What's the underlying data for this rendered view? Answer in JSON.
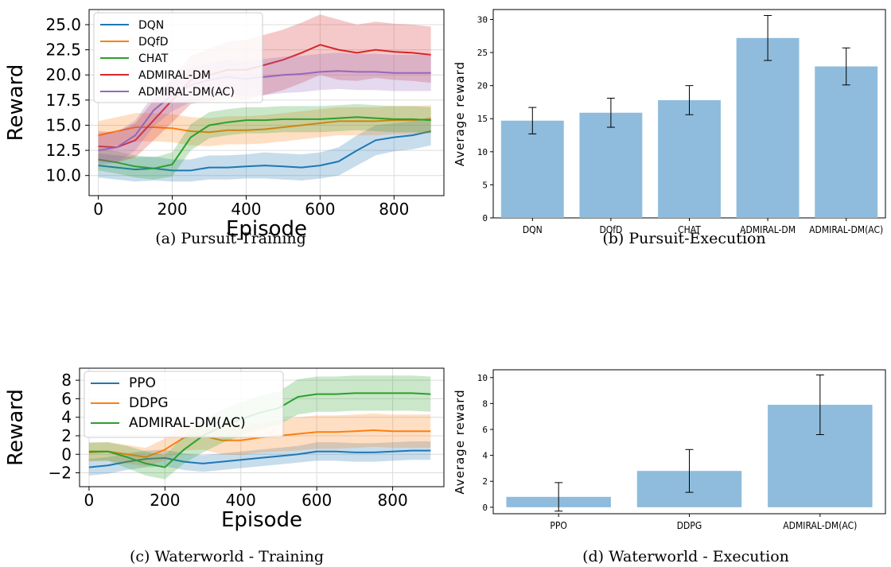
{
  "chart_data": [
    {
      "id": "a",
      "type": "line",
      "caption": "(a) Pursuit-Training",
      "xlabel": "Episode",
      "ylabel": "Reward",
      "xlim": [
        -25,
        935
      ],
      "ylim": [
        8.0,
        26.5
      ],
      "xticks": [
        0,
        200,
        400,
        600,
        800
      ],
      "yticks": [
        10.0,
        12.5,
        15.0,
        17.5,
        20.0,
        22.5,
        25.0
      ],
      "ytick_labels": [
        "10.0",
        "12.5",
        "15.0",
        "17.5",
        "20.0",
        "22.5",
        "25.0"
      ],
      "grid": true,
      "legend": "top-left",
      "series": [
        {
          "name": "DQN",
          "color": "#1f77b4",
          "x": [
            0,
            50,
            100,
            150,
            200,
            250,
            300,
            350,
            400,
            450,
            500,
            550,
            600,
            650,
            700,
            750,
            800,
            850,
            900
          ],
          "y": [
            11.0,
            10.8,
            10.6,
            10.7,
            10.5,
            10.5,
            10.8,
            10.8,
            10.9,
            11.0,
            10.9,
            10.8,
            11.0,
            11.4,
            12.5,
            13.5,
            13.8,
            14.0,
            14.4
          ],
          "band": [
            1.2,
            1.2,
            1.2,
            1.2,
            1.1,
            1.1,
            1.2,
            1.2,
            1.2,
            1.3,
            1.3,
            1.3,
            1.3,
            1.4,
            1.5,
            1.5,
            1.4,
            1.4,
            1.4
          ]
        },
        {
          "name": "DQfD",
          "color": "#ff7f0e",
          "x": [
            0,
            50,
            100,
            150,
            200,
            250,
            300,
            350,
            400,
            450,
            500,
            550,
            600,
            650,
            700,
            750,
            800,
            850,
            900
          ],
          "y": [
            14.0,
            14.4,
            14.8,
            14.8,
            14.7,
            14.4,
            14.3,
            14.5,
            14.5,
            14.6,
            14.8,
            15.0,
            15.2,
            15.4,
            15.4,
            15.4,
            15.5,
            15.5,
            15.6
          ],
          "band": [
            1.4,
            1.4,
            1.4,
            1.4,
            1.4,
            1.4,
            1.4,
            1.4,
            1.4,
            1.4,
            1.4,
            1.4,
            1.4,
            1.4,
            1.4,
            1.4,
            1.4,
            1.4,
            1.4
          ]
        },
        {
          "name": "CHAT",
          "color": "#2ca02c",
          "x": [
            0,
            50,
            100,
            150,
            200,
            250,
            300,
            350,
            400,
            450,
            500,
            550,
            600,
            650,
            700,
            750,
            800,
            850,
            900
          ],
          "y": [
            11.6,
            11.3,
            10.9,
            10.7,
            11.1,
            13.8,
            15.0,
            15.3,
            15.5,
            15.5,
            15.6,
            15.6,
            15.6,
            15.7,
            15.8,
            15.7,
            15.6,
            15.6,
            15.5
          ],
          "band": [
            1.1,
            1.1,
            1.1,
            1.1,
            1.2,
            1.3,
            1.3,
            1.3,
            1.3,
            1.3,
            1.3,
            1.3,
            1.3,
            1.3,
            1.3,
            1.3,
            1.3,
            1.3,
            1.3
          ]
        },
        {
          "name": "ADMIRAL-DM",
          "color": "#d62728",
          "x": [
            0,
            50,
            100,
            150,
            200,
            250,
            300,
            350,
            400,
            450,
            500,
            550,
            600,
            650,
            700,
            750,
            800,
            850,
            900
          ],
          "y": [
            12.9,
            12.8,
            13.5,
            15.5,
            17.5,
            19.5,
            20.0,
            20.5,
            20.5,
            21.0,
            21.5,
            22.2,
            23.0,
            22.5,
            22.2,
            22.5,
            22.3,
            22.2,
            22.0
          ],
          "band": [
            1.5,
            1.5,
            1.7,
            2.0,
            2.2,
            2.4,
            2.6,
            2.8,
            3.0,
            3.0,
            3.0,
            3.0,
            3.0,
            3.0,
            2.8,
            2.8,
            2.8,
            2.8,
            2.8
          ]
        },
        {
          "name": "ADMIRAL-DM(AC)",
          "color": "#9467bd",
          "x": [
            0,
            50,
            100,
            150,
            200,
            250,
            300,
            350,
            400,
            450,
            500,
            550,
            600,
            650,
            700,
            750,
            800,
            850,
            900
          ],
          "y": [
            12.5,
            12.8,
            14.0,
            16.5,
            18.0,
            19.0,
            19.5,
            19.8,
            19.6,
            19.8,
            20.0,
            20.1,
            20.3,
            20.4,
            20.3,
            20.3,
            20.2,
            20.2,
            20.2
          ],
          "band": [
            1.5,
            1.5,
            1.5,
            1.6,
            1.6,
            1.7,
            1.7,
            1.7,
            1.7,
            1.8,
            1.8,
            1.8,
            1.8,
            1.8,
            1.8,
            1.8,
            1.8,
            1.8,
            1.8
          ]
        }
      ]
    },
    {
      "id": "b",
      "type": "bar",
      "caption": "(b) Pursuit-Execution",
      "ylabel": "Average reward",
      "ylim": [
        0,
        31.5
      ],
      "yticks": [
        0,
        5,
        10,
        15,
        20,
        25,
        30
      ],
      "grid": false,
      "bar_color": "#8fbcdc",
      "categories": [
        "DQN",
        "DQfD",
        "CHAT",
        "ADMIRAL-DM",
        "ADMIRAL-DM(AC)"
      ],
      "values": [
        14.7,
        15.9,
        17.8,
        27.2,
        22.9
      ],
      "errors": [
        2.0,
        2.2,
        2.2,
        3.4,
        2.8
      ]
    },
    {
      "id": "c",
      "type": "line",
      "caption": "(c) Waterworld - Training",
      "xlabel": "Episode",
      "ylabel": "Reward",
      "xlim": [
        -25,
        935
      ],
      "ylim": [
        -3.5,
        9.3
      ],
      "xticks": [
        0,
        200,
        400,
        600,
        800
      ],
      "yticks": [
        -2,
        0,
        2,
        4,
        6,
        8
      ],
      "ytick_labels": [
        "−2",
        "0",
        "2",
        "4",
        "6",
        "8"
      ],
      "grid": true,
      "legend": "top-left",
      "series": [
        {
          "name": "PPO",
          "color": "#1f77b4",
          "x": [
            0,
            50,
            100,
            150,
            200,
            250,
            300,
            350,
            400,
            450,
            500,
            550,
            600,
            650,
            700,
            750,
            800,
            850,
            900
          ],
          "y": [
            -1.4,
            -1.2,
            -0.8,
            -0.5,
            -0.4,
            -0.8,
            -1.0,
            -0.8,
            -0.6,
            -0.4,
            -0.2,
            0.0,
            0.3,
            0.3,
            0.2,
            0.2,
            0.3,
            0.4,
            0.4
          ],
          "band": [
            0.9,
            0.9,
            0.9,
            0.9,
            0.9,
            0.9,
            0.9,
            0.9,
            0.9,
            0.9,
            0.9,
            0.9,
            1.0,
            1.0,
            1.0,
            1.0,
            1.0,
            1.0,
            1.0
          ]
        },
        {
          "name": "DDPG",
          "color": "#ff7f0e",
          "x": [
            0,
            50,
            100,
            150,
            200,
            250,
            300,
            350,
            400,
            450,
            500,
            550,
            600,
            650,
            700,
            750,
            800,
            850,
            900
          ],
          "y": [
            0.2,
            0.3,
            0.0,
            -0.3,
            0.5,
            1.8,
            2.0,
            1.5,
            1.5,
            1.8,
            2.0,
            2.2,
            2.4,
            2.4,
            2.5,
            2.6,
            2.5,
            2.5,
            2.5
          ],
          "band": [
            1.0,
            1.0,
            1.0,
            1.0,
            1.2,
            1.4,
            1.5,
            1.5,
            1.6,
            1.6,
            1.7,
            1.8,
            1.8,
            1.8,
            1.8,
            1.8,
            1.8,
            1.8,
            1.8
          ]
        },
        {
          "name": "ADMIRAL-DM(AC)",
          "color": "#2ca02c",
          "x": [
            0,
            50,
            100,
            150,
            200,
            250,
            300,
            350,
            400,
            450,
            500,
            550,
            600,
            650,
            700,
            750,
            800,
            850,
            900
          ],
          "y": [
            0.3,
            0.3,
            -0.3,
            -1.0,
            -1.4,
            0.5,
            2.0,
            3.0,
            3.8,
            4.5,
            5.0,
            6.2,
            6.5,
            6.5,
            6.6,
            6.6,
            6.6,
            6.6,
            6.5
          ],
          "band": [
            1.0,
            1.0,
            1.2,
            1.3,
            1.3,
            1.5,
            1.8,
            1.8,
            1.8,
            1.8,
            1.8,
            1.9,
            1.9,
            1.9,
            1.9,
            1.9,
            1.9,
            1.9,
            1.9
          ]
        }
      ]
    },
    {
      "id": "d",
      "type": "bar",
      "caption": "(d) Waterworld - Execution",
      "ylabel": "Average reward",
      "ylim": [
        -0.5,
        10.6
      ],
      "yticks": [
        0,
        2,
        4,
        6,
        8,
        10
      ],
      "grid": false,
      "bar_color": "#8fbcdc",
      "categories": [
        "PPO",
        "DDPG",
        "ADMIRAL-DM(AC)"
      ],
      "values": [
        0.8,
        2.8,
        7.9
      ],
      "errors": [
        1.1,
        1.65,
        2.3
      ]
    }
  ]
}
